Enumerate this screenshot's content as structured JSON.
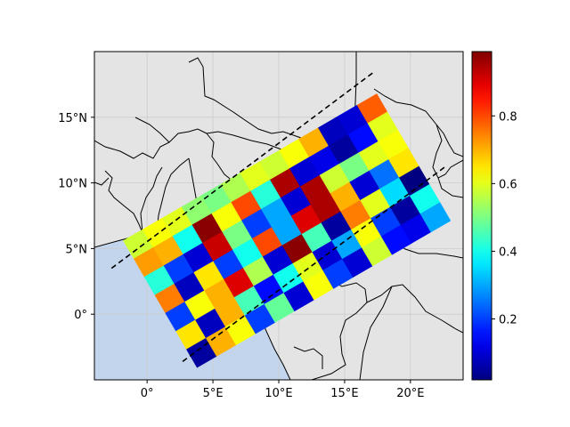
{
  "chart_data": {
    "type": "heatmap",
    "title": "",
    "xlabel": "",
    "ylabel": "",
    "xlim": [
      -4,
      24
    ],
    "ylim": [
      -5,
      20
    ],
    "x_ticks": [
      0,
      5,
      10,
      15,
      20
    ],
    "x_tick_labels": [
      "0°",
      "5°E",
      "10°E",
      "15°E",
      "20°E"
    ],
    "y_ticks": [
      0,
      5,
      10,
      15
    ],
    "y_tick_labels": [
      "0°",
      "5°N",
      "10°N",
      "15°N"
    ],
    "grid": true,
    "colormap": "jet",
    "colorbar": {
      "range": [
        0.02,
        0.99
      ],
      "ticks": [
        0.2,
        0.4,
        0.6,
        0.8
      ],
      "tick_labels": [
        "0.2",
        "0.4",
        "0.6",
        "0.8"
      ]
    },
    "swath": {
      "origin_lonlat": [
        -1.8,
        5.6
      ],
      "along_track_step_lonlat": [
        1.48,
        0.86
      ],
      "cross_track_step_lonlat": [
        0.8,
        -1.38
      ],
      "columns": 13,
      "rows": 7
    },
    "values": [
      [
        0.58,
        0.62,
        0.6,
        0.52,
        0.5,
        0.55,
        0.6,
        0.58,
        0.62,
        0.7,
        0.08,
        0.1,
        0.78
      ],
      [
        0.72,
        0.7,
        0.4,
        0.98,
        0.62,
        0.8,
        0.42,
        0.95,
        0.1,
        0.12,
        0.05,
        0.15,
        0.6
      ],
      [
        0.42,
        0.2,
        0.1,
        0.92,
        0.5,
        0.2,
        0.3,
        0.1,
        0.95,
        0.58,
        0.5,
        0.6,
        0.62
      ],
      [
        0.75,
        0.08,
        0.65,
        0.2,
        0.4,
        0.8,
        0.3,
        0.9,
        0.95,
        0.7,
        0.1,
        0.25,
        0.65
      ],
      [
        0.2,
        0.62,
        0.7,
        0.9,
        0.55,
        0.1,
        0.98,
        0.45,
        0.05,
        0.75,
        0.6,
        0.35,
        0.02
      ],
      [
        0.65,
        0.08,
        0.7,
        0.45,
        0.15,
        0.4,
        0.6,
        0.1,
        0.3,
        0.62,
        0.2,
        0.05,
        0.4
      ],
      [
        0.05,
        0.7,
        0.62,
        0.2,
        0.48,
        0.1,
        0.62,
        0.2,
        0.1,
        0.58,
        0.15,
        0.12,
        0.3
      ]
    ],
    "dashed_lines": [
      {
        "from": [
          -2.7,
          3.5
        ],
        "to": [
          17.3,
          18.5
        ]
      },
      {
        "from": [
          2.7,
          -3.6
        ],
        "to": [
          22.6,
          11.2
        ]
      }
    ],
    "colors": {
      "land": "#e4e4e4",
      "ocean": "#c3d5ec",
      "grid": "#cccccc",
      "outline": "#000000"
    }
  }
}
